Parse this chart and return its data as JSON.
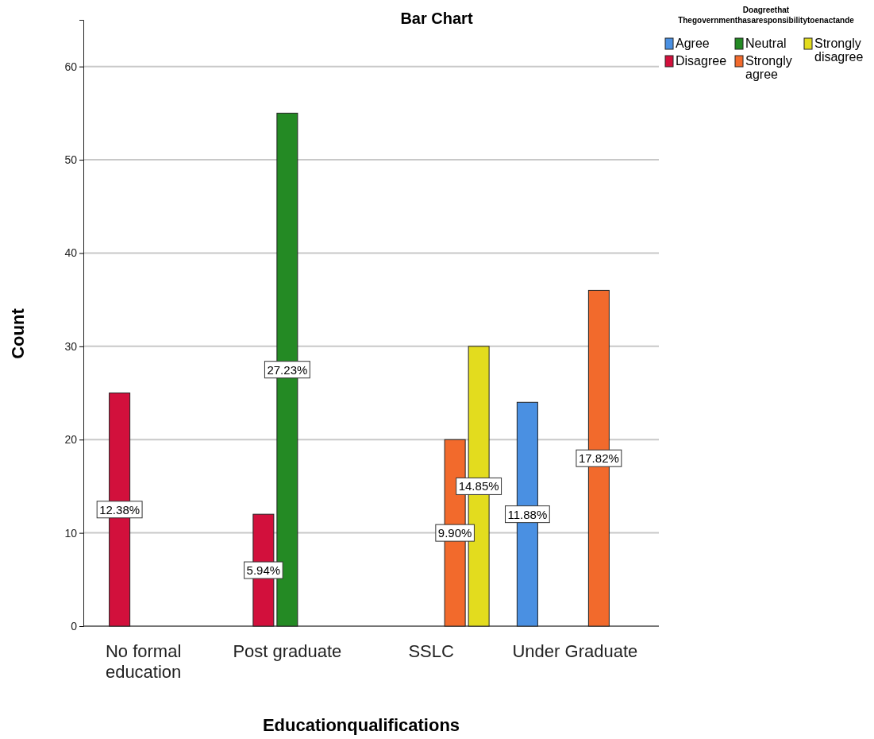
{
  "chart_data": {
    "type": "bar",
    "title": "Bar Chart",
    "xlabel": "Educationqualifications",
    "ylabel": "Count",
    "legend_title": "Doagreethat\nThegovernmenthasaresponsibilitytoenactande",
    "categories": [
      "No formal education",
      "Post graduate",
      "SSLC",
      "Under Graduate"
    ],
    "series": [
      {
        "name": "Agree",
        "color": "#4a90e2",
        "values": [
          null,
          null,
          null,
          24
        ]
      },
      {
        "name": "Disagree",
        "color": "#d2103c",
        "values": [
          25,
          12,
          null,
          null
        ]
      },
      {
        "name": "Neutral",
        "color": "#248a24",
        "values": [
          null,
          55,
          null,
          null
        ]
      },
      {
        "name": "Strongly agree",
        "color": "#f26a2c",
        "values": [
          null,
          null,
          20,
          36
        ]
      },
      {
        "name": "Strongly disagree",
        "color": "#e3dc1e",
        "values": [
          null,
          null,
          30,
          null
        ]
      }
    ],
    "annotations": [
      "12.38%",
      "5.94%",
      "27.23%",
      "9.90%",
      "14.85%",
      "11.88%",
      "17.82%"
    ],
    "ylim": [
      0,
      65
    ],
    "yticks": [
      0,
      10,
      20,
      30,
      40,
      50,
      60
    ],
    "grid": "y",
    "legend": "top right"
  }
}
